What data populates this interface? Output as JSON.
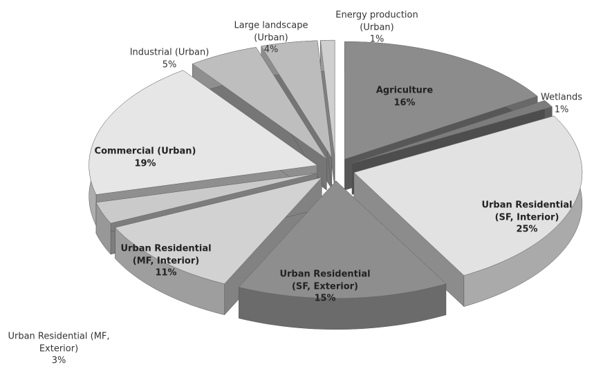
{
  "chart_data": {
    "type": "pie",
    "categories": [
      "Agriculture",
      "Wetlands",
      "Urban Residential (SF, Interior)",
      "Urban Residential (SF, Exterior)",
      "Urban Residential (MF, Interior)",
      "Urban Residential (MF, Exterior)",
      "Commercial (Urban)",
      "Industrial (Urban)",
      "Large landscape (Urban)",
      "Energy production (Urban)"
    ],
    "values": [
      16,
      1,
      25,
      15,
      11,
      3,
      19,
      5,
      4,
      1
    ],
    "value_labels": [
      "16%",
      "1%",
      "25%",
      "15%",
      "11%",
      "3%",
      "19%",
      "5%",
      "4%",
      "1%"
    ],
    "colors": [
      "#8c8c8c",
      "#7c7c7c",
      "#e2e2e2",
      "#8e8e8e",
      "#d2d2d2",
      "#cacaca",
      "#e6e6e6",
      "#bebebe",
      "#bcbcbc",
      "#cfcfcf"
    ]
  }
}
